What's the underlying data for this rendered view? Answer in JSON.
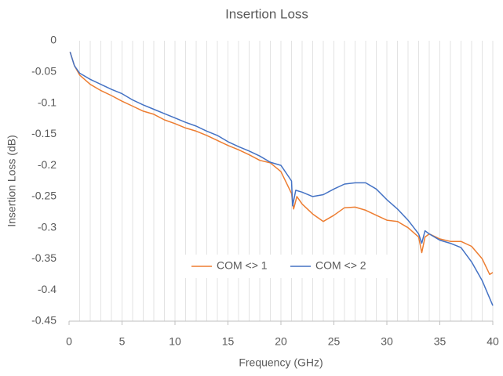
{
  "chart_data": {
    "type": "line",
    "title": "Insertion Loss",
    "x_label": "Frequency (GHz)",
    "y_label": "Insertion Loss (dB)",
    "xlim": [
      0,
      40
    ],
    "ylim": [
      -0.45,
      0
    ],
    "xticks": [
      0,
      5,
      10,
      15,
      20,
      25,
      30,
      35,
      40
    ],
    "yticks": [
      0,
      -0.05,
      -0.1,
      -0.15,
      -0.2,
      -0.25,
      -0.3,
      -0.35,
      -0.4,
      -0.45
    ],
    "x_grid_ticks": [
      1,
      2,
      3,
      4,
      5,
      6,
      7,
      8,
      9,
      10,
      11,
      12,
      13,
      14,
      15,
      16,
      17,
      18,
      19,
      20,
      21,
      22,
      23,
      24,
      25,
      26,
      27,
      28,
      29,
      30,
      31,
      32,
      33,
      34,
      35,
      36,
      37,
      38,
      39,
      40
    ],
    "legend": "bottom",
    "series": [
      {
        "name": "COM <> 1",
        "color": "#ED7D31",
        "x": [
          0.1,
          0.5,
          1,
          2,
          3,
          4,
          5,
          6,
          7,
          8,
          9,
          10,
          11,
          12,
          13,
          14,
          15,
          16,
          17,
          18,
          19,
          20,
          21,
          21.2,
          21.5,
          22,
          23,
          24,
          25,
          26,
          27,
          28,
          29,
          30,
          31,
          32,
          33,
          33.3,
          33.6,
          34,
          35,
          36,
          37,
          38,
          39,
          39.7,
          40
        ],
        "values": [
          -0.018,
          -0.04,
          -0.055,
          -0.07,
          -0.08,
          -0.088,
          -0.097,
          -0.105,
          -0.113,
          -0.118,
          -0.127,
          -0.133,
          -0.14,
          -0.145,
          -0.152,
          -0.16,
          -0.168,
          -0.175,
          -0.183,
          -0.192,
          -0.196,
          -0.21,
          -0.245,
          -0.27,
          -0.25,
          -0.262,
          -0.278,
          -0.29,
          -0.28,
          -0.268,
          -0.267,
          -0.272,
          -0.28,
          -0.288,
          -0.29,
          -0.3,
          -0.315,
          -0.34,
          -0.315,
          -0.31,
          -0.318,
          -0.322,
          -0.322,
          -0.33,
          -0.35,
          -0.375,
          -0.372
        ]
      },
      {
        "name": "COM <> 2",
        "color": "#4472C4",
        "x": [
          0.1,
          0.5,
          1,
          2,
          3,
          4,
          5,
          6,
          7,
          8,
          9,
          10,
          11,
          12,
          13,
          14,
          15,
          16,
          17,
          18,
          19,
          20,
          21,
          21.1,
          21.4,
          22,
          23,
          24,
          25,
          26,
          27,
          28,
          29,
          30,
          31,
          32,
          33,
          33.3,
          33.6,
          34,
          35,
          36,
          37,
          38,
          39,
          40
        ],
        "values": [
          -0.018,
          -0.04,
          -0.052,
          -0.062,
          -0.07,
          -0.078,
          -0.085,
          -0.095,
          -0.103,
          -0.11,
          -0.117,
          -0.124,
          -0.131,
          -0.137,
          -0.145,
          -0.152,
          -0.162,
          -0.17,
          -0.177,
          -0.185,
          -0.195,
          -0.2,
          -0.225,
          -0.265,
          -0.24,
          -0.243,
          -0.25,
          -0.247,
          -0.238,
          -0.23,
          -0.228,
          -0.228,
          -0.238,
          -0.255,
          -0.27,
          -0.288,
          -0.31,
          -0.325,
          -0.305,
          -0.31,
          -0.32,
          -0.325,
          -0.332,
          -0.355,
          -0.385,
          -0.425
        ]
      }
    ]
  }
}
